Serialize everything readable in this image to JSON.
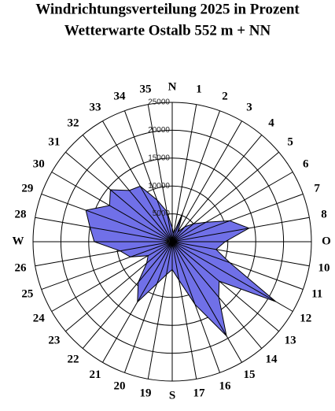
{
  "chart_data": {
    "type": "polar",
    "title": "Windrichtungsverteilung 2025 in Prozent",
    "subtitle": "Wetterwarte Ostalb 552 m + NN",
    "categories": [
      "N",
      "1",
      "2",
      "3",
      "4",
      "5",
      "6",
      "7",
      "8",
      "O",
      "10",
      "11",
      "12",
      "13",
      "14",
      "15",
      "16",
      "17",
      "S",
      "19",
      "20",
      "21",
      "22",
      "23",
      "24",
      "25",
      "26",
      "W",
      "28",
      "29",
      "30",
      "31",
      "32",
      "33",
      "34",
      "35"
    ],
    "values": [
      2500,
      1500,
      5500,
      2000,
      3500,
      5000,
      7000,
      11000,
      14000,
      9500,
      8000,
      11000,
      21500,
      11000,
      13000,
      19500,
      12000,
      7000,
      5000,
      6000,
      8000,
      12500,
      9500,
      6000,
      5000,
      8000,
      9500,
      14000,
      15000,
      16500,
      13000,
      14500,
      12000,
      11500,
      8000,
      5500
    ],
    "color": "#7070e8",
    "rlim": [
      0,
      25000
    ],
    "rticks": [
      0,
      5000,
      10000,
      15000,
      20000,
      25000
    ],
    "grid": true
  }
}
